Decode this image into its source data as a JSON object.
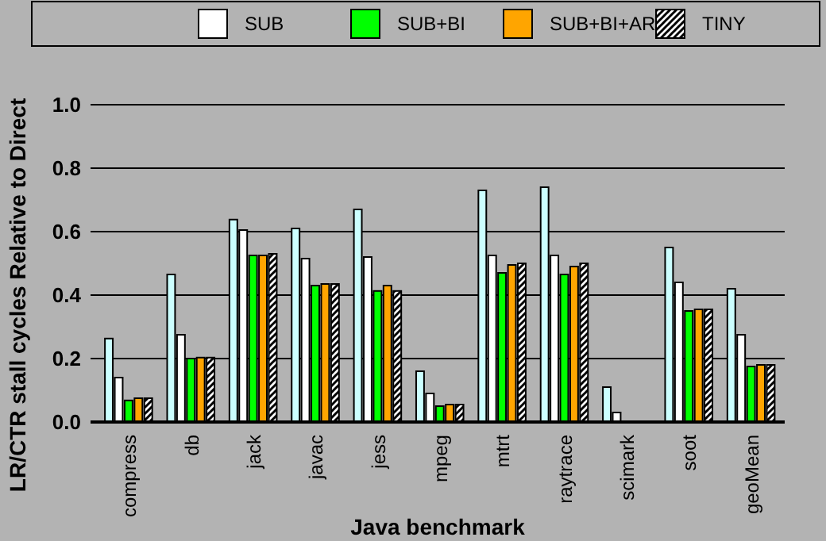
{
  "chart_data": {
    "type": "bar",
    "xlabel": "Java benchmark",
    "ylabel": "LR/CTR stall cycles Relative to Direct",
    "categories": [
      "compress",
      "db",
      "jack",
      "javac",
      "jess",
      "mpeg",
      "mtrt",
      "raytrace",
      "scimark",
      "soot",
      "geoMean"
    ],
    "series": [
      {
        "color": "#ccffff",
        "values": [
          0.263,
          0.465,
          0.638,
          0.61,
          0.67,
          0.16,
          0.73,
          0.74,
          0.11,
          0.55,
          0.42
        ]
      },
      {
        "name": "SUB",
        "color": "#ffffff",
        "values": [
          0.14,
          0.275,
          0.605,
          0.515,
          0.52,
          0.09,
          0.525,
          0.525,
          0.03,
          0.44,
          0.275
        ]
      },
      {
        "name": "SUB+BI",
        "color": "#00ff00",
        "values": [
          0.068,
          0.2,
          0.525,
          0.43,
          0.413,
          0.05,
          0.47,
          0.465,
          null,
          0.35,
          0.175
        ]
      },
      {
        "name": "SUB+BI+AR",
        "color": "#ffa500",
        "values": [
          0.075,
          0.203,
          0.525,
          0.435,
          0.43,
          0.055,
          0.495,
          0.49,
          null,
          0.355,
          0.18
        ]
      },
      {
        "name": "TINY",
        "color": "#000000",
        "values": [
          0.075,
          0.203,
          0.53,
          0.435,
          0.413,
          0.055,
          0.5,
          0.5,
          null,
          0.355,
          0.18
        ]
      }
    ],
    "ylim": [
      0,
      1
    ],
    "yticks": [
      {
        "value": 0,
        "label": "0.0"
      },
      {
        "value": 0.2,
        "label": "0.2"
      },
      {
        "value": 0.4,
        "label": "0.4"
      },
      {
        "value": 0.6,
        "label": "0.6"
      },
      {
        "value": 0.8,
        "label": "0.8"
      },
      {
        "value": 1,
        "label": "1.0"
      }
    ],
    "grid": "y",
    "legend": "top"
  }
}
